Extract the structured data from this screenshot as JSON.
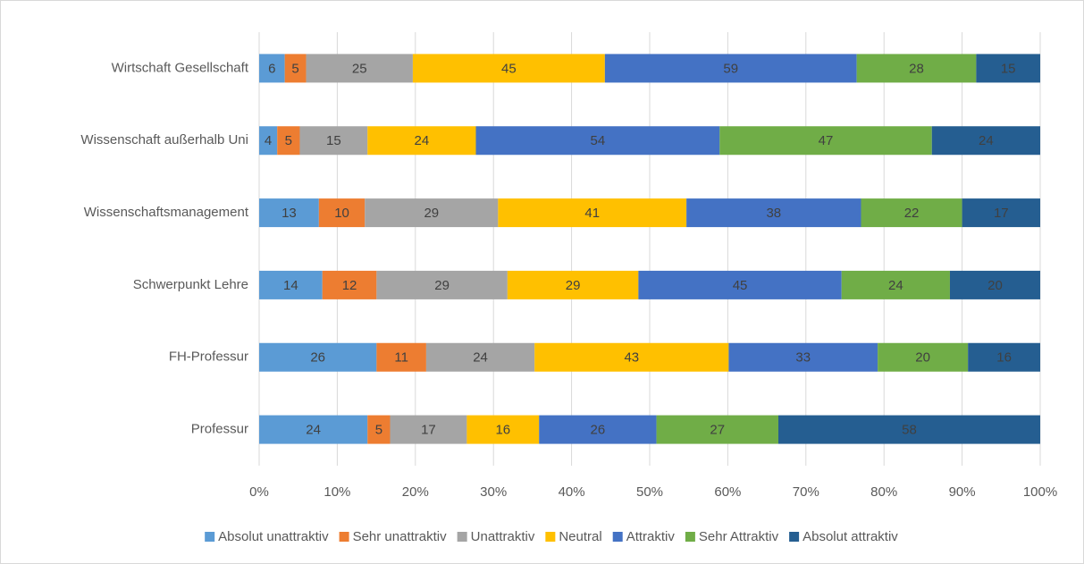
{
  "chart_data": {
    "type": "bar",
    "orientation": "horizontal",
    "stacking": "percent",
    "categories": [
      "Wirtschaft Gesellschaft",
      "Wissenschaft außerhalb Uni",
      "Wissenschaftsmanagement",
      "Schwerpunkt Lehre",
      "FH-Professur",
      "Professur"
    ],
    "series": [
      {
        "name": "Absolut unattraktiv",
        "color": "#5b9bd5",
        "values": [
          6,
          4,
          13,
          14,
          26,
          24
        ]
      },
      {
        "name": "Sehr unattraktiv",
        "color": "#ed7d31",
        "values": [
          5,
          5,
          10,
          12,
          11,
          5
        ]
      },
      {
        "name": "Unattraktiv",
        "color": "#a5a5a5",
        "values": [
          25,
          15,
          29,
          29,
          24,
          17
        ]
      },
      {
        "name": "Neutral",
        "color": "#ffc000",
        "values": [
          45,
          24,
          41,
          29,
          43,
          16
        ]
      },
      {
        "name": "Attraktiv",
        "color": "#4472c4",
        "values": [
          59,
          54,
          38,
          45,
          33,
          26
        ]
      },
      {
        "name": "Sehr Attraktiv",
        "color": "#70ad47",
        "values": [
          28,
          47,
          22,
          24,
          20,
          27
        ]
      },
      {
        "name": "Absolut attraktiv",
        "color": "#255e91",
        "values": [
          15,
          24,
          17,
          20,
          16,
          58
        ]
      }
    ],
    "xlim": [
      0,
      100
    ],
    "xticks": [
      {
        "value": 0,
        "label": "0%"
      },
      {
        "value": 10,
        "label": "10%"
      },
      {
        "value": 20,
        "label": "20%"
      },
      {
        "value": 30,
        "label": "30%"
      },
      {
        "value": 40,
        "label": "40%"
      },
      {
        "value": 50,
        "label": "50%"
      },
      {
        "value": 60,
        "label": "60%"
      },
      {
        "value": 70,
        "label": "70%"
      },
      {
        "value": 80,
        "label": "80%"
      },
      {
        "value": 90,
        "label": "90%"
      },
      {
        "value": 100,
        "label": "100%"
      }
    ],
    "grid": true,
    "legend": "bottom"
  }
}
